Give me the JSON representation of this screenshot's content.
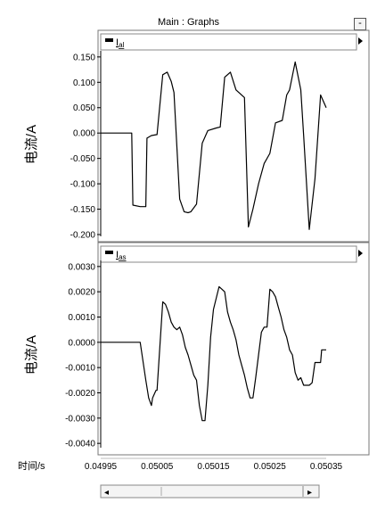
{
  "window": {
    "title": "Main : Graphs",
    "minimize_label": "-"
  },
  "scrollbar": {
    "left_arrow": "◂",
    "right_arrow": "▸"
  },
  "chart_data": [
    {
      "type": "line",
      "title": "",
      "legend": {
        "label": "I",
        "subscript": "al",
        "placement": "top-left"
      },
      "ylabel": "电流/A",
      "xlabel": "",
      "ylim": [
        -0.2,
        0.155
      ],
      "xlim": [
        0.04995,
        0.05035
      ],
      "y_ticks": [
        "0.150",
        "0.100",
        "0.050",
        "0.000",
        "-0.050",
        "-0.100",
        "-0.150",
        "-0.200"
      ],
      "y_tick_values": [
        0.15,
        0.1,
        0.05,
        0.0,
        -0.05,
        -0.1,
        -0.15,
        -0.2
      ],
      "grid": false,
      "series": [
        {
          "name": "",
          "x": [
            0.04995,
            0.050005,
            0.050007,
            0.05002,
            0.05003,
            0.050032,
            0.05004,
            0.05005,
            0.05006,
            0.050068,
            0.050075,
            0.05008,
            0.05009,
            0.050098,
            0.050105,
            0.05011,
            0.05012,
            0.05013,
            0.05014,
            0.050155,
            0.050162,
            0.05017,
            0.05018,
            0.05019,
            0.050205,
            0.050212,
            0.05022,
            0.05023,
            0.05024,
            0.05025,
            0.05026,
            0.050272,
            0.05028,
            0.050285,
            0.050295,
            0.050305,
            0.05031,
            0.05032,
            0.05033,
            0.05034,
            0.05035
          ],
          "y": [
            0.0,
            0.0,
            -0.142,
            -0.145,
            -0.145,
            -0.01,
            -0.005,
            -0.003,
            0.115,
            0.12,
            0.102,
            0.08,
            -0.13,
            -0.155,
            -0.157,
            -0.155,
            -0.14,
            -0.02,
            0.005,
            0.01,
            0.012,
            0.11,
            0.12,
            0.085,
            0.07,
            -0.185,
            -0.15,
            -0.1,
            -0.06,
            -0.04,
            0.02,
            0.025,
            0.075,
            0.085,
            0.14,
            0.085,
            -0.005,
            -0.19,
            -0.09,
            0.075,
            0.05
          ]
        }
      ]
    },
    {
      "type": "line",
      "title": "",
      "legend": {
        "label": "I",
        "subscript": "as",
        "placement": "top-left"
      },
      "ylabel": "电流/A",
      "xlabel": "时间/s",
      "ylim": [
        -0.0041,
        0.0031
      ],
      "xlim": [
        0.04995,
        0.05035
      ],
      "y_ticks": [
        "0.0030",
        "0.0020",
        "0.0010",
        "0.0000",
        "-0.0010",
        "-0.0020",
        "-0.0030",
        "-0.0040"
      ],
      "y_tick_values": [
        0.003,
        0.002,
        0.001,
        0.0,
        -0.001,
        -0.002,
        -0.003,
        -0.004
      ],
      "x_ticks": [
        "0.04995",
        "0.05005",
        "0.05015",
        "0.05025",
        "0.05035"
      ],
      "x_tick_values": [
        0.04995,
        0.05005,
        0.05015,
        0.05025,
        0.05035
      ],
      "grid": false,
      "series": [
        {
          "name": "",
          "x": [
            0.04995,
            0.05002,
            0.05003,
            0.050035,
            0.05004,
            0.050042,
            0.050048,
            0.05005,
            0.05006,
            0.050065,
            0.05007,
            0.050075,
            0.05008,
            0.050085,
            0.05009,
            0.050095,
            0.0501,
            0.050105,
            0.05011,
            0.050115,
            0.05012,
            0.050125,
            0.05013,
            0.050135,
            0.05014,
            0.050145,
            0.05015,
            0.05016,
            0.050165,
            0.05017,
            0.050175,
            0.05018,
            0.050185,
            0.05019,
            0.050195,
            0.0502,
            0.050205,
            0.05021,
            0.050215,
            0.05022,
            0.050225,
            0.05023,
            0.050235,
            0.05024,
            0.050245,
            0.05025,
            0.050255,
            0.05026,
            0.050265,
            0.05027,
            0.050275,
            0.05028,
            0.050285,
            0.05029,
            0.050295,
            0.0503,
            0.050305,
            0.05031,
            0.050315,
            0.05032,
            0.050325,
            0.05033,
            0.05034,
            0.050342,
            0.05035
          ],
          "y": [
            0.0,
            0.0,
            -0.0015,
            -0.0022,
            -0.0025,
            -0.0022,
            -0.0019,
            -0.0019,
            0.0016,
            0.0015,
            0.0012,
            0.0008,
            0.0006,
            0.0005,
            0.0006,
            0.0003,
            -0.0002,
            -0.0005,
            -0.0009,
            -0.0013,
            -0.0015,
            -0.0025,
            -0.0031,
            -0.0031,
            -0.0017,
            0.0002,
            0.0013,
            0.0022,
            0.0021,
            0.002,
            0.0012,
            0.0008,
            0.0005,
            0.0001,
            -0.0005,
            -0.0009,
            -0.0013,
            -0.0018,
            -0.0022,
            -0.0022,
            -0.0014,
            -0.0005,
            0.0004,
            0.0006,
            0.0006,
            0.0021,
            0.002,
            0.0018,
            0.0014,
            0.001,
            0.0005,
            0.0002,
            -0.0003,
            -0.0005,
            -0.0012,
            -0.0015,
            -0.0014,
            -0.0017,
            -0.0017,
            -0.0017,
            -0.0016,
            -0.0008,
            -0.0008,
            -0.0003,
            -0.0003
          ]
        }
      ]
    }
  ]
}
